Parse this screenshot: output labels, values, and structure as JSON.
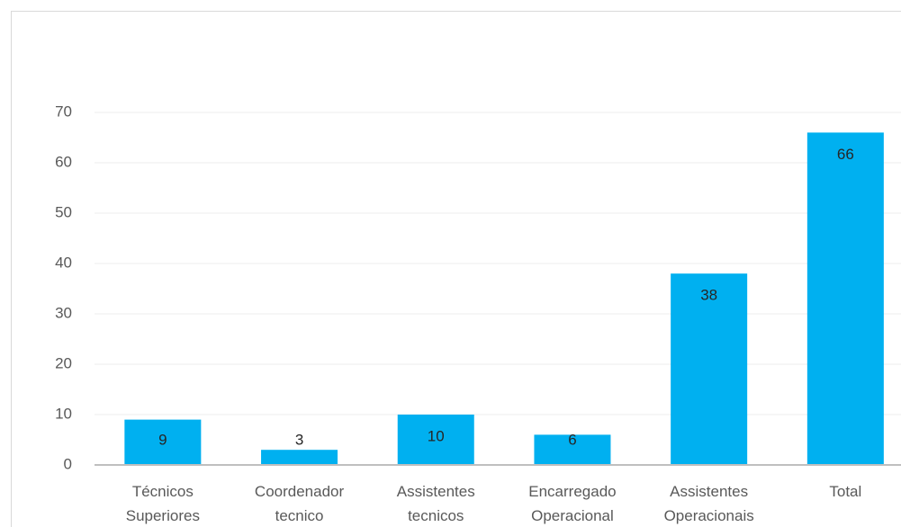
{
  "chart_data": {
    "type": "bar",
    "categories": [
      "Técnicos Superiores",
      "Coordenador tecnico",
      "Assistentes tecnicos",
      "Encarregado Operacional",
      "Assistentes Operacionais",
      "Total"
    ],
    "values": [
      9,
      3,
      10,
      6,
      38,
      66
    ],
    "color": "#00b0f0",
    "ylim": [
      0,
      70
    ],
    "yticks": [
      0,
      10,
      20,
      30,
      40,
      50,
      60,
      70
    ],
    "grid": true
  }
}
